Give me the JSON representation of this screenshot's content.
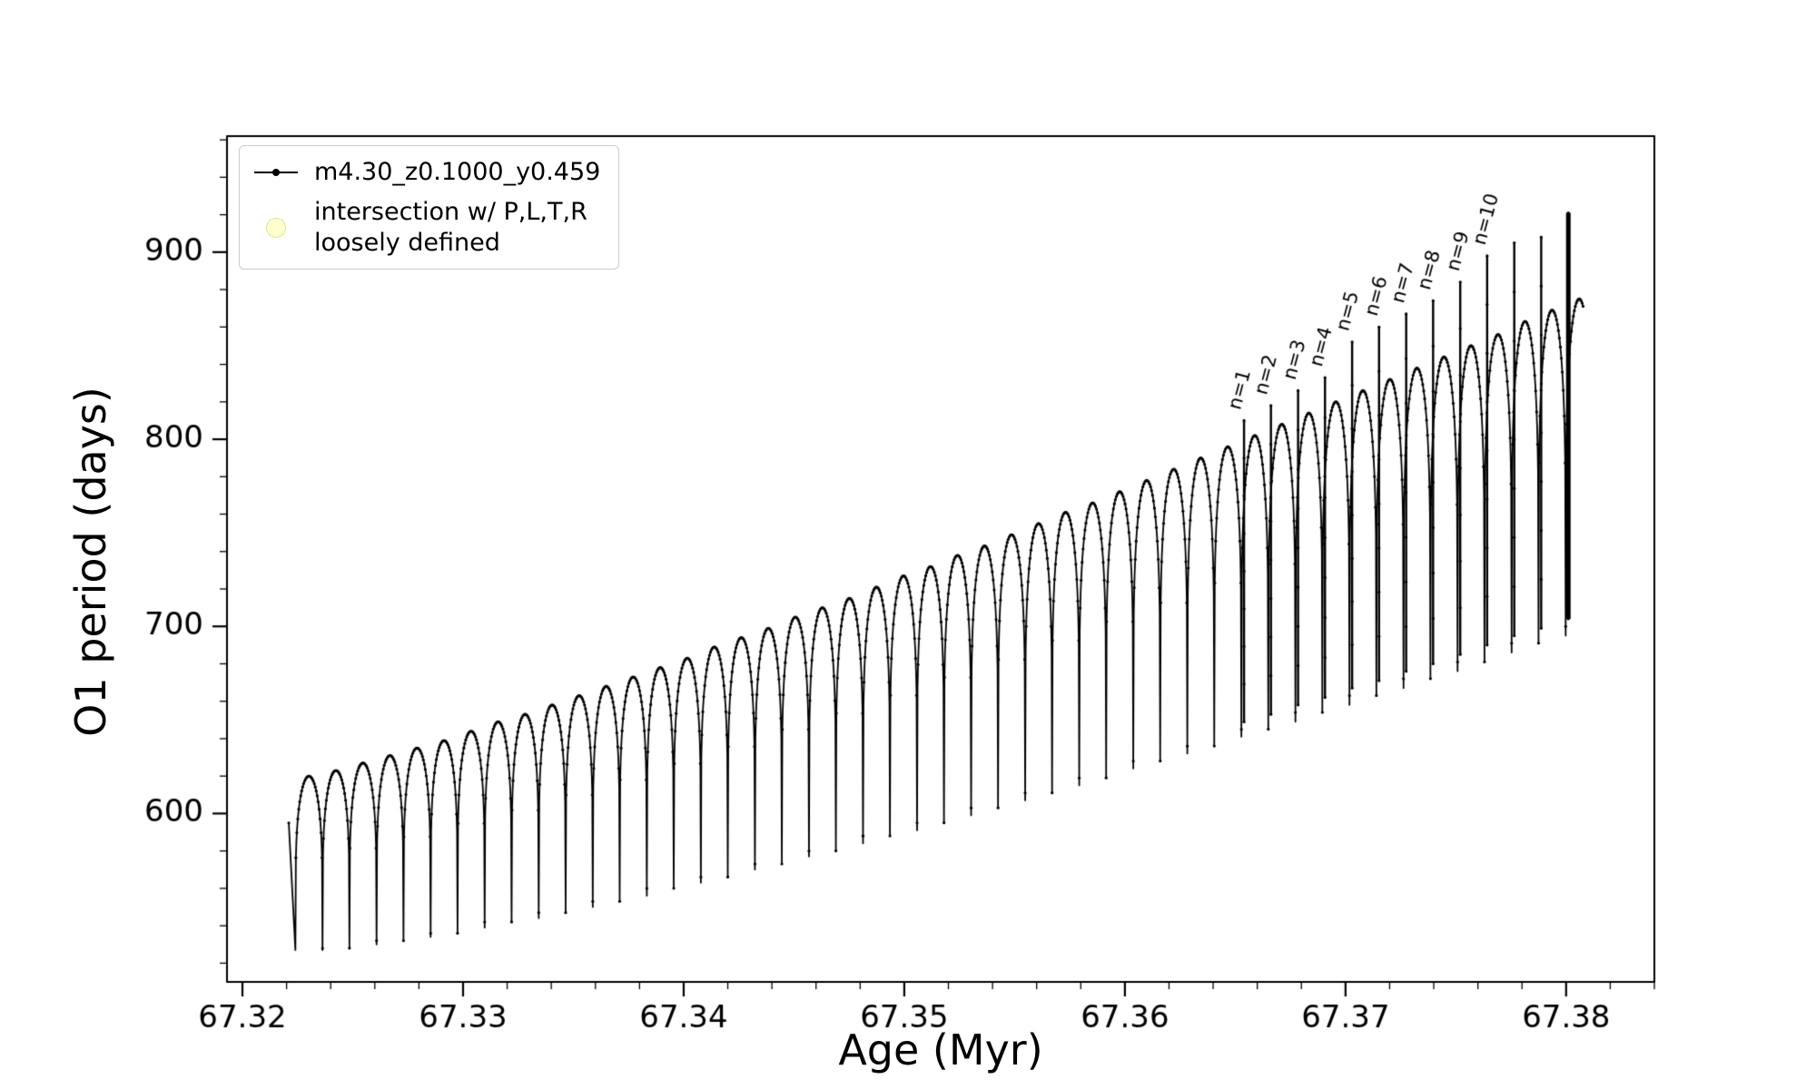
{
  "figure": {
    "background": "#ffffff",
    "line_color": "#000000",
    "axis_color": "#000000"
  },
  "legend": {
    "series_label": "m4.30_z0.1000_y0.459",
    "intersection_label": "intersection w/ P,L,T,R\nloosely defined",
    "intersection_marker_fill": "#ffffa0",
    "intersection_marker_edge": "#dede8c"
  },
  "chart_data": {
    "type": "line",
    "title": "",
    "xlabel": "Age (Myr)",
    "ylabel": "O1 period (days)",
    "series_name": "m4.30_z0.1000_y0.459",
    "xlim": [
      67.3193,
      67.384
    ],
    "ylim": [
      510,
      962
    ],
    "x_ticks": [
      67.32,
      67.33,
      67.34,
      67.35,
      67.36,
      67.37,
      67.38
    ],
    "x_tick_labels": [
      "67.32",
      "67.33",
      "67.34",
      "67.35",
      "67.36",
      "67.37",
      "67.38"
    ],
    "x_minor_step": 0.002,
    "y_ticks": [
      600,
      700,
      800,
      900
    ],
    "y_tick_labels": [
      "600",
      "700",
      "800",
      "900"
    ],
    "y_minor_step": 20,
    "grid": false,
    "legend_position": "upper-left",
    "line_color": "#000000",
    "lead_in": {
      "x": 67.3221,
      "y": 595
    },
    "pulse_width": 0.001225,
    "spike_offset": 0.00012,
    "shape_exponent": 0.22,
    "last_pulse_end_fraction": 0.66,
    "pulse_format": [
      "x_start",
      "peak",
      "trough",
      "spike_peak_or_null"
    ],
    "pulses": [
      [
        67.3224,
        620,
        527,
        null
      ],
      [
        67.32363,
        623,
        528,
        null
      ],
      [
        67.32485,
        627,
        530,
        null
      ],
      [
        67.32608,
        631,
        532,
        null
      ],
      [
        67.3273,
        635,
        534,
        null
      ],
      [
        67.32853,
        639,
        536,
        null
      ],
      [
        67.32975,
        644,
        539,
        null
      ],
      [
        67.33098,
        649,
        542,
        null
      ],
      [
        67.3322,
        653,
        544,
        null
      ],
      [
        67.33343,
        658,
        547,
        null
      ],
      [
        67.33465,
        663,
        550,
        null
      ],
      [
        67.33588,
        668,
        553,
        null
      ],
      [
        67.3371,
        673,
        556,
        null
      ],
      [
        67.33833,
        678,
        560,
        null
      ],
      [
        67.33955,
        683,
        563,
        null
      ],
      [
        67.34078,
        689,
        566,
        null
      ],
      [
        67.342,
        694,
        570,
        null
      ],
      [
        67.34323,
        699,
        573,
        null
      ],
      [
        67.34445,
        705,
        577,
        null
      ],
      [
        67.34568,
        710,
        580,
        null
      ],
      [
        67.3469,
        715,
        584,
        null
      ],
      [
        67.34813,
        721,
        588,
        null
      ],
      [
        67.34935,
        727,
        591,
        null
      ],
      [
        67.35058,
        732,
        595,
        null
      ],
      [
        67.3518,
        738,
        599,
        null
      ],
      [
        67.35303,
        743,
        603,
        null
      ],
      [
        67.35425,
        749,
        607,
        null
      ],
      [
        67.35548,
        755,
        611,
        null
      ],
      [
        67.3567,
        761,
        615,
        null
      ],
      [
        67.35793,
        766,
        619,
        null
      ],
      [
        67.35915,
        772,
        624,
        null
      ],
      [
        67.36038,
        778,
        628,
        null
      ],
      [
        67.3616,
        784,
        632,
        null
      ],
      [
        67.36283,
        790,
        636,
        null
      ],
      [
        67.36405,
        796,
        641,
        null
      ],
      [
        67.36528,
        802,
        645,
        810
      ],
      [
        67.3665,
        808,
        649,
        818
      ],
      [
        67.36773,
        814,
        654,
        826
      ],
      [
        67.36895,
        820,
        658,
        833
      ],
      [
        67.37018,
        826,
        663,
        852
      ],
      [
        67.3714,
        832,
        667,
        860
      ],
      [
        67.37263,
        838,
        672,
        867
      ],
      [
        67.37385,
        844,
        676,
        874
      ],
      [
        67.37508,
        850,
        681,
        884
      ],
      [
        67.3763,
        856,
        686,
        898
      ],
      [
        67.37753,
        863,
        691,
        905
      ],
      [
        67.37875,
        869,
        695,
        908
      ],
      [
        67.37998,
        875,
        700,
        921
      ]
    ],
    "annotations": [
      {
        "text": "n=1",
        "x": 67.365,
        "y": 816
      },
      {
        "text": "n=2",
        "x": 67.3662,
        "y": 824
      },
      {
        "text": "n=3",
        "x": 67.3675,
        "y": 832
      },
      {
        "text": "n=4",
        "x": 67.3687,
        "y": 839
      },
      {
        "text": "n=5",
        "x": 67.3699,
        "y": 858
      },
      {
        "text": "n=6",
        "x": 67.3712,
        "y": 866
      },
      {
        "text": "n=7",
        "x": 67.3724,
        "y": 873
      },
      {
        "text": "n=8",
        "x": 67.3736,
        "y": 880
      },
      {
        "text": "n=9",
        "x": 67.3749,
        "y": 890
      },
      {
        "text": "n=10",
        "x": 67.3761,
        "y": 904
      }
    ]
  }
}
